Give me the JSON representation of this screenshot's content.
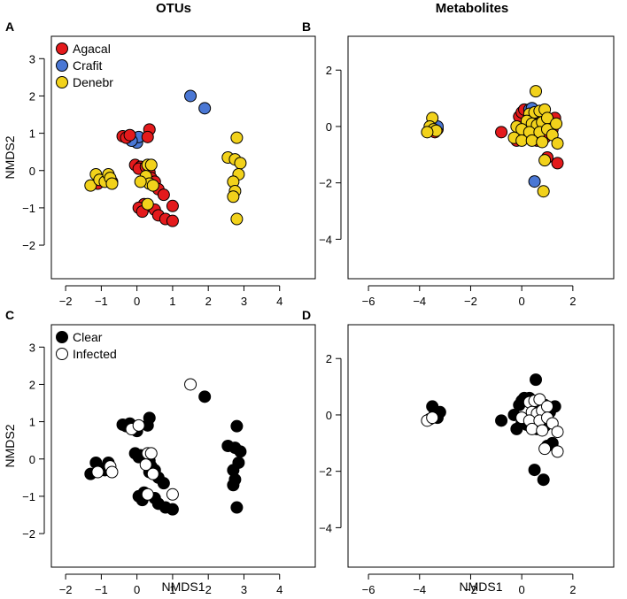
{
  "figure": {
    "col_titles": [
      "OTUs",
      "Metabolites"
    ],
    "xlabel": "NMDS1",
    "ylabel": "NMDS2"
  },
  "colors": {
    "Agacal": "#e41a1c",
    "Crafit": "#4a77d4",
    "Denebr": "#f2d21b",
    "Clear": "#000000",
    "Infected": "#ffffff"
  },
  "chart_data": [
    {
      "type": "scatter",
      "panel": "A",
      "title": "OTUs",
      "xlim": [
        -2.4,
        5.0
      ],
      "ylim": [
        -2.9,
        3.6
      ],
      "xticks": [
        -2,
        -1,
        0,
        1,
        2,
        3,
        4
      ],
      "yticks": [
        -2,
        -1,
        0,
        1,
        2,
        3
      ],
      "legend": [
        "Agacal",
        "Crafit",
        "Denebr"
      ],
      "series": [
        {
          "name": "Crafit",
          "points": [
            [
              1.5,
              2.0
            ],
            [
              1.9,
              1.67
            ],
            [
              -0.1,
              0.85
            ],
            [
              0.0,
              0.75
            ],
            [
              0.05,
              0.9
            ],
            [
              -0.15,
              0.8
            ]
          ]
        },
        {
          "name": "Agacal",
          "points": [
            [
              -0.4,
              0.92
            ],
            [
              -0.3,
              0.88
            ],
            [
              -0.2,
              0.95
            ],
            [
              0.35,
              1.1
            ],
            [
              0.3,
              0.9
            ],
            [
              -0.05,
              0.15
            ],
            [
              0.1,
              0.1
            ],
            [
              0.05,
              0.05
            ],
            [
              0.25,
              0.1
            ],
            [
              0.35,
              -0.05
            ],
            [
              0.4,
              -0.2
            ],
            [
              0.5,
              -0.3
            ],
            [
              0.6,
              -0.5
            ],
            [
              0.75,
              -0.65
            ],
            [
              0.2,
              -0.9
            ],
            [
              0.3,
              -0.95
            ],
            [
              0.05,
              -1.0
            ],
            [
              0.15,
              -1.1
            ],
            [
              0.5,
              -1.05
            ],
            [
              0.6,
              -1.2
            ],
            [
              0.8,
              -1.3
            ],
            [
              1.0,
              -1.35
            ],
            [
              1.0,
              -0.95
            ],
            [
              -1.1,
              -0.35
            ],
            [
              -0.7,
              -0.3
            ]
          ]
        },
        {
          "name": "Denebr",
          "points": [
            [
              2.8,
              0.88
            ],
            [
              2.55,
              0.35
            ],
            [
              2.75,
              0.3
            ],
            [
              2.9,
              0.2
            ],
            [
              2.85,
              -0.1
            ],
            [
              2.7,
              -0.3
            ],
            [
              2.75,
              -0.55
            ],
            [
              2.7,
              -0.7
            ],
            [
              2.8,
              -1.3
            ],
            [
              -1.3,
              -0.4
            ],
            [
              -1.15,
              -0.1
            ],
            [
              -1.05,
              -0.25
            ],
            [
              -0.9,
              -0.3
            ],
            [
              -0.8,
              -0.1
            ],
            [
              -0.75,
              -0.2
            ],
            [
              -0.7,
              -0.35
            ],
            [
              0.3,
              0.15
            ],
            [
              0.4,
              0.15
            ],
            [
              0.25,
              -0.15
            ],
            [
              0.35,
              -0.35
            ],
            [
              0.45,
              -0.4
            ],
            [
              0.1,
              -0.3
            ],
            [
              0.3,
              -0.9
            ]
          ]
        }
      ]
    },
    {
      "type": "scatter",
      "panel": "B",
      "title": "Metabolites",
      "xlim": [
        -6.8,
        3.6
      ],
      "ylim": [
        -5.4,
        3.2
      ],
      "xticks": [
        -6,
        -4,
        -2,
        0,
        2
      ],
      "yticks": [
        -4,
        -2,
        0,
        2
      ],
      "series": [
        {
          "name": "Agacal",
          "points": [
            [
              -3.6,
              -0.15
            ],
            [
              -3.4,
              -0.2
            ],
            [
              -3.3,
              -0.1
            ],
            [
              -0.8,
              -0.2
            ],
            [
              -0.1,
              0.35
            ],
            [
              0.0,
              0.5
            ],
            [
              0.1,
              0.6
            ],
            [
              0.3,
              0.4
            ],
            [
              0.5,
              0.3
            ],
            [
              0.7,
              0.1
            ],
            [
              0.9,
              0.35
            ],
            [
              1.1,
              0.1
            ],
            [
              1.2,
              -0.1
            ],
            [
              1.3,
              0.3
            ],
            [
              1.0,
              -1.1
            ],
            [
              1.4,
              -1.3
            ],
            [
              0.2,
              -0.35
            ],
            [
              -0.2,
              -0.5
            ],
            [
              0.6,
              -0.5
            ],
            [
              0.9,
              -0.4
            ]
          ]
        },
        {
          "name": "Crafit",
          "points": [
            [
              -3.5,
              0.05
            ],
            [
              -3.3,
              0.0
            ],
            [
              0.3,
              0.6
            ],
            [
              0.4,
              0.65
            ],
            [
              0.5,
              -1.95
            ]
          ]
        },
        {
          "name": "Denebr",
          "points": [
            [
              -3.5,
              0.3
            ],
            [
              -3.6,
              0.0
            ],
            [
              -3.45,
              -0.1
            ],
            [
              -3.35,
              -0.15
            ],
            [
              -3.7,
              -0.2
            ],
            [
              0.55,
              1.25
            ],
            [
              0.3,
              0.45
            ],
            [
              0.5,
              0.5
            ],
            [
              0.7,
              0.55
            ],
            [
              0.9,
              0.6
            ],
            [
              0.2,
              0.2
            ],
            [
              0.4,
              0.1
            ],
            [
              0.6,
              0.05
            ],
            [
              0.8,
              0.15
            ],
            [
              1.0,
              0.3
            ],
            [
              -0.2,
              0.0
            ],
            [
              0.0,
              -0.1
            ],
            [
              0.3,
              -0.2
            ],
            [
              0.7,
              -0.2
            ],
            [
              1.0,
              -0.1
            ],
            [
              1.2,
              -0.3
            ],
            [
              -0.3,
              -0.4
            ],
            [
              0.0,
              -0.5
            ],
            [
              0.4,
              -0.5
            ],
            [
              0.8,
              -0.55
            ],
            [
              1.4,
              -0.6
            ],
            [
              0.9,
              -1.2
            ],
            [
              0.85,
              -2.3
            ],
            [
              1.35,
              0.1
            ]
          ]
        }
      ]
    },
    {
      "type": "scatter",
      "panel": "C",
      "title": "",
      "xlim": [
        -2.4,
        5.0
      ],
      "ylim": [
        -2.9,
        3.6
      ],
      "xticks": [
        -2,
        -1,
        0,
        1,
        2,
        3,
        4
      ],
      "yticks": [
        -2,
        -1,
        0,
        1,
        2,
        3
      ],
      "legend": [
        "Clear",
        "Infected"
      ],
      "series": [
        {
          "name": "Clear",
          "points": [
            [
              1.9,
              1.67
            ],
            [
              -0.4,
              0.92
            ],
            [
              -0.3,
              0.88
            ],
            [
              -0.2,
              0.95
            ],
            [
              0.35,
              1.1
            ],
            [
              0.3,
              0.9
            ],
            [
              -0.05,
              0.15
            ],
            [
              0.1,
              0.1
            ],
            [
              0.05,
              0.05
            ],
            [
              0.25,
              0.1
            ],
            [
              0.35,
              -0.05
            ],
            [
              0.4,
              -0.2
            ],
            [
              0.5,
              -0.3
            ],
            [
              0.6,
              -0.5
            ],
            [
              0.75,
              -0.65
            ],
            [
              0.2,
              -0.9
            ],
            [
              0.05,
              -1.0
            ],
            [
              0.15,
              -1.1
            ],
            [
              0.5,
              -1.05
            ],
            [
              0.6,
              -1.2
            ],
            [
              0.8,
              -1.3
            ],
            [
              1.0,
              -1.35
            ],
            [
              -1.3,
              -0.4
            ],
            [
              -1.15,
              -0.1
            ],
            [
              -1.05,
              -0.25
            ],
            [
              -0.9,
              -0.3
            ],
            [
              -0.8,
              -0.1
            ],
            [
              -0.1,
              0.85
            ],
            [
              0.0,
              0.75
            ],
            [
              2.8,
              0.88
            ],
            [
              2.55,
              0.35
            ],
            [
              2.75,
              0.3
            ],
            [
              2.9,
              0.2
            ],
            [
              2.85,
              -0.1
            ],
            [
              2.7,
              -0.3
            ],
            [
              2.75,
              -0.55
            ],
            [
              2.7,
              -0.7
            ],
            [
              2.8,
              -1.3
            ],
            [
              0.35,
              -0.35
            ]
          ]
        },
        {
          "name": "Infected",
          "points": [
            [
              1.5,
              2.0
            ],
            [
              -0.75,
              -0.2
            ],
            [
              -0.7,
              -0.35
            ],
            [
              -1.1,
              -0.35
            ],
            [
              0.3,
              0.15
            ],
            [
              0.4,
              0.15
            ],
            [
              0.25,
              -0.15
            ],
            [
              0.45,
              -0.4
            ],
            [
              0.3,
              -0.95
            ],
            [
              1.0,
              -0.95
            ],
            [
              -0.15,
              0.8
            ],
            [
              0.05,
              0.9
            ]
          ]
        }
      ]
    },
    {
      "type": "scatter",
      "panel": "D",
      "title": "",
      "xlim": [
        -6.8,
        3.6
      ],
      "ylim": [
        -5.4,
        3.2
      ],
      "xticks": [
        -6,
        -4,
        -2,
        0,
        2
      ],
      "yticks": [
        -4,
        -2,
        0,
        2
      ],
      "series": [
        {
          "name": "Clear",
          "points": [
            [
              -3.5,
              0.3
            ],
            [
              -3.4,
              0.05
            ],
            [
              -3.3,
              -0.1
            ],
            [
              -3.2,
              0.1
            ],
            [
              -0.8,
              -0.2
            ],
            [
              0.55,
              1.25
            ],
            [
              -0.1,
              0.35
            ],
            [
              0.0,
              0.5
            ],
            [
              0.1,
              0.6
            ],
            [
              0.5,
              0.3
            ],
            [
              0.7,
              0.1
            ],
            [
              0.9,
              0.35
            ],
            [
              1.1,
              0.1
            ],
            [
              1.3,
              0.3
            ],
            [
              0.2,
              -0.35
            ],
            [
              -0.2,
              -0.5
            ],
            [
              0.6,
              -0.5
            ],
            [
              0.9,
              -0.4
            ],
            [
              1.0,
              -1.1
            ],
            [
              1.2,
              -1.0
            ],
            [
              0.5,
              -1.95
            ],
            [
              0.85,
              -2.3
            ],
            [
              0.3,
              0.6
            ],
            [
              -0.3,
              0.0
            ],
            [
              0.0,
              -0.3
            ]
          ]
        },
        {
          "name": "Infected",
          "points": [
            [
              -3.6,
              -0.15
            ],
            [
              -3.7,
              -0.2
            ],
            [
              -3.5,
              -0.1
            ],
            [
              0.3,
              0.45
            ],
            [
              0.5,
              0.5
            ],
            [
              0.7,
              0.55
            ],
            [
              0.4,
              0.1
            ],
            [
              0.6,
              0.05
            ],
            [
              0.8,
              0.15
            ],
            [
              1.0,
              0.3
            ],
            [
              0.0,
              -0.1
            ],
            [
              0.3,
              -0.2
            ],
            [
              0.7,
              -0.2
            ],
            [
              1.0,
              -0.1
            ],
            [
              1.2,
              -0.3
            ],
            [
              0.4,
              -0.5
            ],
            [
              0.8,
              -0.55
            ],
            [
              1.4,
              -0.6
            ],
            [
              1.4,
              -1.3
            ],
            [
              0.9,
              -1.2
            ]
          ]
        }
      ]
    }
  ]
}
